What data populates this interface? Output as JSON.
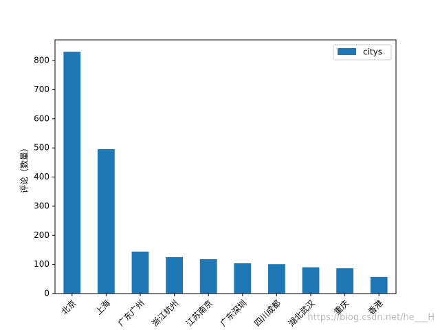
{
  "chart_data": {
    "type": "bar",
    "y_label": "评论（数量）",
    "categories": [
      "北京",
      "上海",
      "广东广州",
      "浙江杭州",
      "江苏南京",
      "广东深圳",
      "四川成都",
      "湖北武汉",
      "重庆",
      "香港"
    ],
    "series": [
      {
        "name": "citys",
        "color": "#1f77b4",
        "values": [
          830,
          496,
          144,
          125,
          118,
          104,
          101,
          90,
          87,
          57
        ]
      }
    ],
    "ylim": [
      0,
      871
    ],
    "yticks": [
      0,
      100,
      200,
      300,
      400,
      500,
      600,
      700,
      800
    ],
    "legend": "upper-right",
    "watermark": "https://blog.csdn.net/he___H"
  }
}
